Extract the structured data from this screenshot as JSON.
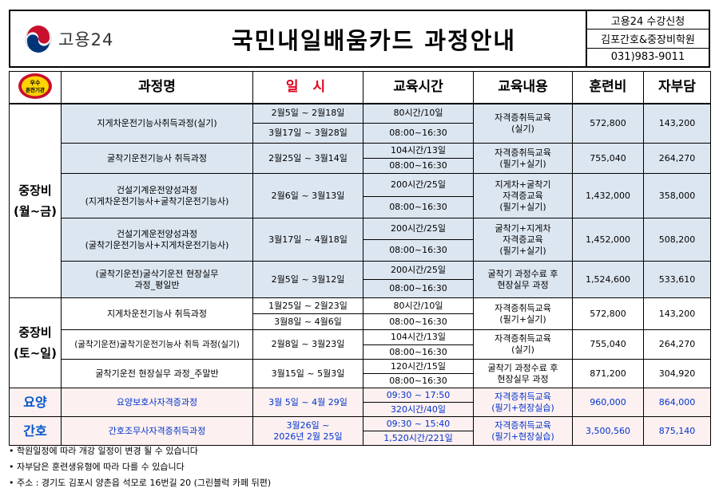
{
  "header": {
    "logo_label": "고용24",
    "title": "국민내일배움카드 과정안내",
    "info": [
      "고용24 수강신청",
      "김포간호&중장비학원",
      "031)983-9011"
    ]
  },
  "columns": {
    "badge_top": "우수",
    "badge_bottom": "훈련기관",
    "course": "과정명",
    "schedule": "일 시",
    "hours": "교육시간",
    "content": "교육내용",
    "fee": "훈련비",
    "self_pay": "자부담"
  },
  "groups": {
    "weekday_line1": "중장비",
    "weekday_line2": "(월~금)",
    "weekend_line1": "중장비",
    "weekend_line2": "(토~일)",
    "yoyang": "요양",
    "ganho": "간호"
  },
  "weekday": [
    {
      "course_lines": [
        "지게차운전기능사취득과정(실기)"
      ],
      "dates": [
        "2월5일 ~ 2월18일",
        "3월17일 ~ 3월28일"
      ],
      "hours": [
        "80시간/10일",
        "08:00~16:30"
      ],
      "content_lines": [
        "자격증취득교육",
        "(실기)"
      ],
      "fee": "572,800",
      "self_pay": "143,200"
    },
    {
      "course_lines": [
        "굴착기운전기능사 취득과정"
      ],
      "dates": [
        "2월25일 ~ 3월14일"
      ],
      "hours": [
        "104시간/13일",
        "08:00~16:30"
      ],
      "content_lines": [
        "자격증취득교육",
        "(필기+실기)"
      ],
      "fee": "755,040",
      "self_pay": "264,270"
    },
    {
      "course_lines": [
        "건설기계운전양성과정",
        "(지게차운전기능사+굴착기운전기능사)"
      ],
      "dates": [
        "2월6일 ~ 3월13일"
      ],
      "hours": [
        "200시간/25일",
        "08:00~16:30"
      ],
      "content_lines": [
        "지게차+굴착기",
        "자격증교육",
        "(필기+실기)"
      ],
      "fee": "1,432,000",
      "self_pay": "358,000"
    },
    {
      "course_lines": [
        "건설기계운전양성과정",
        "(굴착기운전기능사+지게차운전기능사)"
      ],
      "dates": [
        "3월17일 ~ 4월18일"
      ],
      "hours": [
        "200시간/25일",
        "08:00~16:30"
      ],
      "content_lines": [
        "굴착기+지게차",
        "자격증교육",
        "(필기+실기)"
      ],
      "fee": "1,452,000",
      "self_pay": "508,200"
    },
    {
      "course_lines": [
        "(굴착기운전)굴삭기운전 현장실무",
        "과정_평일반"
      ],
      "dates": [
        "2월5일 ~ 3월12일"
      ],
      "hours": [
        "200시간/25일",
        "08:00~16:30"
      ],
      "content_lines": [
        "굴착기 과정수료 후",
        "현장실무 과정"
      ],
      "fee": "1,524,600",
      "self_pay": "533,610"
    }
  ],
  "weekend": [
    {
      "course_lines": [
        "지게차운전기능사 취득과정"
      ],
      "dates": [
        "1월25일 ~ 2월23일",
        "3월8일 ~ 4월6일"
      ],
      "hours": [
        "80시간/10일",
        "08:00~16:30"
      ],
      "content_lines": [
        "자격증취득교육",
        "(필기+실기)"
      ],
      "fee": "572,800",
      "self_pay": "143,200"
    },
    {
      "course_lines": [
        "(굴착기운전)굴착기운전기능사 취득 과정(실기)"
      ],
      "dates": [
        "2월8일 ~ 3월23일"
      ],
      "hours": [
        "104시간/13일",
        "08:00~16:30"
      ],
      "content_lines": [
        "자격증취득교육",
        "(실기)"
      ],
      "fee": "755,040",
      "self_pay": "264,270"
    },
    {
      "course_lines": [
        "굴착기운전 현장실무 과정_주말반"
      ],
      "dates": [
        "3월15일 ~ 5월3일"
      ],
      "hours": [
        "120시간/15일",
        "08:00~16:30"
      ],
      "content_lines": [
        "굴착기 과정수료 후",
        "현장실무 과정"
      ],
      "fee": "871,200",
      "self_pay": "304,920"
    }
  ],
  "yoyang_row": {
    "course": "요양보호사자격증과정",
    "dates": "3월 5일 ~ 4월 29일",
    "hours": [
      "09:30 ~ 17:50",
      "320시간/40일"
    ],
    "content_lines": [
      "자격증취득교육",
      "(필기+현장실습)"
    ],
    "fee": "960,000",
    "self_pay": "864,000"
  },
  "ganho_row": {
    "course": "간호조무사자격증취득과정",
    "dates": [
      "3월26일 ~",
      "2026년 2월 25일"
    ],
    "hours": [
      "09:30 ~ 15:40",
      "1,520시간/221일"
    ],
    "content_lines": [
      "자격증취득교육",
      "(필기+현장실습)"
    ],
    "fee": "3,500,560",
    "self_pay": "875,140"
  },
  "notes": [
    "• 학원일정에 따라 개강 일정이 변경 될 수 있습니다",
    "• 자부담은 훈련생유형에 따라 다를 수 있습니다",
    "• 주소 : 경기도 김포시 양촌읍 석모로 16번길 20 (그린블럭 카페 뒤편)"
  ],
  "colors": {
    "weekday_bg": "#dce6f1",
    "highlight_bg": "#fdf0f0",
    "accent_red": "#e0001a",
    "accent_blue": "#0033cc"
  }
}
